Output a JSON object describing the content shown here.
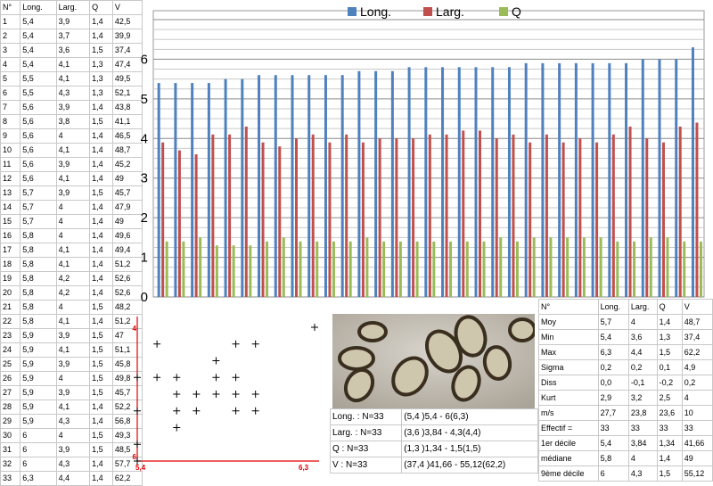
{
  "table": {
    "headers": [
      "N°",
      "Long.",
      "Larg.",
      "Q",
      "V"
    ],
    "rows": [
      [
        "1",
        "5,4",
        "3,9",
        "1,4",
        "42,5"
      ],
      [
        "2",
        "5,4",
        "3,7",
        "1,4",
        "39,9"
      ],
      [
        "3",
        "5,4",
        "3,6",
        "1,5",
        "37,4"
      ],
      [
        "4",
        "5,4",
        "4,1",
        "1,3",
        "47,4"
      ],
      [
        "5",
        "5,5",
        "4,1",
        "1,3",
        "49,5"
      ],
      [
        "6",
        "5,5",
        "4,3",
        "1,3",
        "52,1"
      ],
      [
        "7",
        "5,6",
        "3,9",
        "1,4",
        "43,8"
      ],
      [
        "8",
        "5,6",
        "3,8",
        "1,5",
        "41,1"
      ],
      [
        "9",
        "5,6",
        "4",
        "1,4",
        "46,5"
      ],
      [
        "10",
        "5,6",
        "4,1",
        "1,4",
        "48,7"
      ],
      [
        "11",
        "5,6",
        "3,9",
        "1,4",
        "45,2"
      ],
      [
        "12",
        "5,6",
        "4,1",
        "1,4",
        "49"
      ],
      [
        "13",
        "5,7",
        "3,9",
        "1,5",
        "45,7"
      ],
      [
        "14",
        "5,7",
        "4",
        "1,4",
        "47,9"
      ],
      [
        "15",
        "5,7",
        "4",
        "1,4",
        "49"
      ],
      [
        "16",
        "5,8",
        "4",
        "1,4",
        "49,6"
      ],
      [
        "17",
        "5,8",
        "4,1",
        "1,4",
        "49,4"
      ],
      [
        "18",
        "5,8",
        "4,1",
        "1,4",
        "51,2"
      ],
      [
        "19",
        "5,8",
        "4,2",
        "1,4",
        "52,6"
      ],
      [
        "20",
        "5,8",
        "4,2",
        "1,4",
        "52,6"
      ],
      [
        "21",
        "5,8",
        "4",
        "1,5",
        "48,2"
      ],
      [
        "22",
        "5,8",
        "4,1",
        "1,4",
        "51,2"
      ],
      [
        "23",
        "5,9",
        "3,9",
        "1,5",
        "47"
      ],
      [
        "24",
        "5,9",
        "4,1",
        "1,5",
        "51,1"
      ],
      [
        "25",
        "5,9",
        "3,9",
        "1,5",
        "45,8"
      ],
      [
        "26",
        "5,9",
        "4",
        "1,5",
        "49,8"
      ],
      [
        "27",
        "5,9",
        "3,9",
        "1,5",
        "45,7"
      ],
      [
        "28",
        "5,9",
        "4,1",
        "1,4",
        "52,2"
      ],
      [
        "29",
        "5,9",
        "4,3",
        "1,4",
        "56,8"
      ],
      [
        "30",
        "6",
        "4",
        "1,5",
        "49,3"
      ],
      [
        "31",
        "6",
        "3,9",
        "1,5",
        "48,5"
      ],
      [
        "32",
        "6",
        "4,3",
        "1,4",
        "57,7"
      ],
      [
        "33",
        "6,3",
        "4,4",
        "1,4",
        "62,2"
      ]
    ]
  },
  "chart_data": [
    {
      "type": "bar",
      "series": [
        {
          "name": "Long.",
          "color": "#4f81bd",
          "values": [
            5.4,
            5.4,
            5.4,
            5.4,
            5.5,
            5.5,
            5.6,
            5.6,
            5.6,
            5.6,
            5.6,
            5.6,
            5.7,
            5.7,
            5.7,
            5.8,
            5.8,
            5.8,
            5.8,
            5.8,
            5.8,
            5.8,
            5.9,
            5.9,
            5.9,
            5.9,
            5.9,
            5.9,
            5.9,
            6,
            6,
            6,
            6.3
          ]
        },
        {
          "name": "Larg.",
          "color": "#c0504d",
          "values": [
            3.9,
            3.7,
            3.6,
            4.1,
            4.1,
            4.3,
            3.9,
            3.8,
            4,
            4.1,
            3.9,
            4.1,
            3.9,
            4,
            4,
            4,
            4.1,
            4.1,
            4.2,
            4.2,
            4,
            4.1,
            3.9,
            4.1,
            3.9,
            4,
            3.9,
            4.1,
            4.3,
            4,
            3.9,
            4.3,
            4.4
          ]
        },
        {
          "name": "Q",
          "color": "#9bbb59",
          "values": [
            1.4,
            1.4,
            1.5,
            1.3,
            1.3,
            1.3,
            1.4,
            1.5,
            1.4,
            1.4,
            1.4,
            1.4,
            1.5,
            1.4,
            1.4,
            1.4,
            1.4,
            1.4,
            1.4,
            1.4,
            1.5,
            1.4,
            1.5,
            1.5,
            1.5,
            1.5,
            1.5,
            1.4,
            1.4,
            1.5,
            1.5,
            1.4,
            1.4
          ]
        }
      ],
      "ylim": [
        0,
        7
      ],
      "yticks": [
        "0",
        "1",
        "2",
        "3",
        "4",
        "5",
        "6"
      ],
      "grid": true,
      "legend": "top"
    },
    {
      "type": "scatter",
      "xlim": [
        5.4,
        6.3
      ],
      "ylim": [
        3.6,
        4.4
      ],
      "xtick_labels": [
        "5,4",
        "6,3"
      ],
      "ytick_labels": [
        "4,4",
        "3,6"
      ],
      "points": [
        [
          5.4,
          3.9
        ],
        [
          5.4,
          3.7
        ],
        [
          5.4,
          3.6
        ],
        [
          5.4,
          4.1
        ],
        [
          5.5,
          4.1
        ],
        [
          5.5,
          4.3
        ],
        [
          5.6,
          3.9
        ],
        [
          5.6,
          3.8
        ],
        [
          5.6,
          4
        ],
        [
          5.6,
          4.1
        ],
        [
          5.7,
          3.9
        ],
        [
          5.7,
          4
        ],
        [
          5.8,
          4
        ],
        [
          5.8,
          4.1
        ],
        [
          5.8,
          4.2
        ],
        [
          5.9,
          3.9
        ],
        [
          5.9,
          4.1
        ],
        [
          5.9,
          4
        ],
        [
          5.9,
          4.3
        ],
        [
          6,
          4
        ],
        [
          6,
          3.9
        ],
        [
          6,
          4.3
        ],
        [
          6.3,
          4.4
        ]
      ]
    }
  ],
  "info": [
    [
      "Long. : N=33",
      "(5,4 )5,4 - 6(6,3)"
    ],
    [
      "Larg. : N=33",
      "(3,6 )3,84 - 4,3(4,4)"
    ],
    [
      "Q : N=33",
      "(1,3 )1,34 - 1,5(1,5)"
    ],
    [
      "V : N=33",
      "(37,4 )41,66 - 55,12(62,2)"
    ]
  ],
  "stats": {
    "headers": [
      "N°",
      "Long.",
      "Larg.",
      "Q",
      "V"
    ],
    "rows": [
      [
        "Moy",
        "5,7",
        "4",
        "1,4",
        "48,7"
      ],
      [
        "Min",
        "5,4",
        "3,6",
        "1,3",
        "37,4"
      ],
      [
        "Max",
        "6,3",
        "4,4",
        "1,5",
        "62,2"
      ],
      [
        "Sigma",
        "0,2",
        "0,2",
        "0,1",
        "4,9"
      ],
      [
        "Diss",
        "0,0",
        "-0,1",
        "-0,2",
        "0,2"
      ],
      [
        "Kurt",
        "2,9",
        "3,2",
        "2,5",
        "4"
      ],
      [
        "m/s",
        "27,7",
        "23,8",
        "23,6",
        "10"
      ],
      [
        "Effectif =",
        "33",
        "33",
        "33",
        "33"
      ],
      [
        "1er décile",
        "5,4",
        "3,84",
        "1,34",
        "41,66"
      ],
      [
        "médiane",
        "5,8",
        "4",
        "1,4",
        "49"
      ],
      [
        "9ème décile",
        "6",
        "4,3",
        "1,5",
        "55,12"
      ]
    ]
  }
}
